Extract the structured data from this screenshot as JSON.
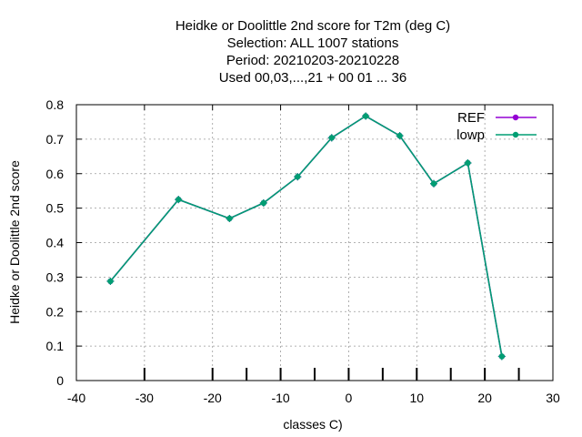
{
  "chart_data": {
    "type": "line",
    "title_lines": [
      "Heidke or Doolittle 2nd score  for T2m (deg C)",
      "Selection: ALL   1007 stations",
      "Period: 20210203-20210228",
      "Used  00,03,...,21  + 00 01 ... 36"
    ],
    "xlabel": "classes C)",
    "ylabel": "Heidke or Doolittle 2nd score",
    "xlim": [
      -40,
      30
    ],
    "ylim": [
      0,
      0.8
    ],
    "x_ticks": [
      -40,
      -30,
      -20,
      -10,
      0,
      10,
      20,
      30
    ],
    "x_tick_labels": [
      "-40",
      "-30",
      "-20",
      "-10",
      "0",
      "10",
      "20",
      "30"
    ],
    "y_ticks": [
      0,
      0.1,
      0.2,
      0.3,
      0.4,
      0.5,
      0.6,
      0.7,
      0.8
    ],
    "y_tick_labels": [
      "0",
      "0.1",
      "0.2",
      "0.3",
      "0.4",
      "0.5",
      "0.6",
      "0.7",
      "0.8"
    ],
    "class_ticks": [
      -30,
      -20,
      -15,
      -10,
      -5,
      0,
      5,
      10,
      15,
      20,
      25
    ],
    "grid": true,
    "legend_position": "top-right",
    "series": [
      {
        "name": "REF",
        "color": "#9400d3",
        "x": [
          -35,
          -25,
          -17.5,
          -12.5,
          -7.5,
          -2.5,
          2.5,
          7.5,
          12.5,
          17.5,
          22.5
        ],
        "y": [
          0.288,
          0.525,
          0.47,
          0.515,
          0.591,
          0.704,
          0.767,
          0.71,
          0.571,
          0.631,
          0.07
        ]
      },
      {
        "name": "lowp",
        "color": "#009e73",
        "x": [
          -35,
          -25,
          -17.5,
          -12.5,
          -7.5,
          -2.5,
          2.5,
          7.5,
          12.5,
          17.5,
          22.5
        ],
        "y": [
          0.288,
          0.525,
          0.47,
          0.515,
          0.591,
          0.704,
          0.767,
          0.71,
          0.571,
          0.631,
          0.07
        ]
      }
    ]
  }
}
